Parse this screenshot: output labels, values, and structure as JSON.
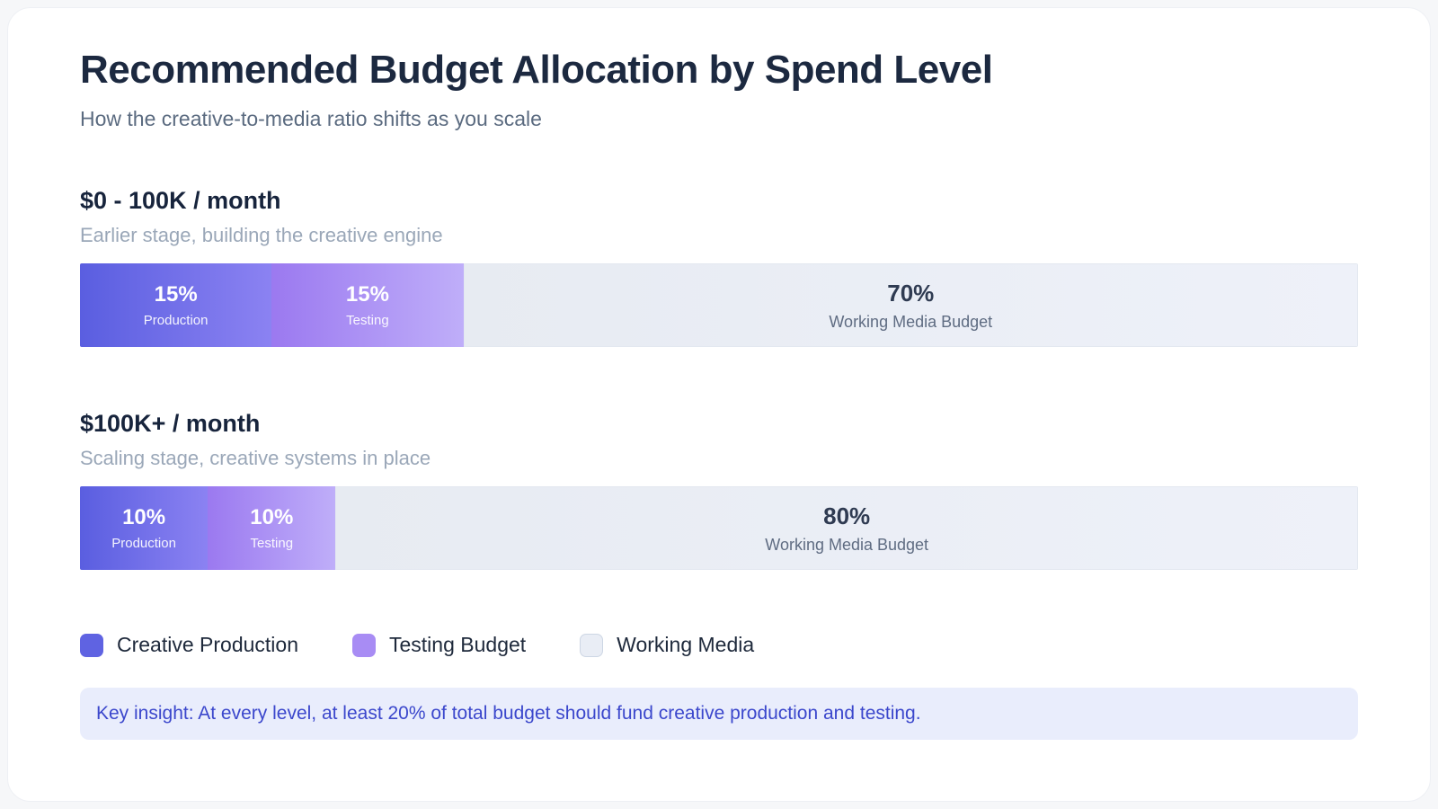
{
  "page": {
    "title": "Recommended Budget Allocation by Spend Level",
    "subtitle": "How the creative-to-media ratio shifts as you scale"
  },
  "chart_data": {
    "type": "bar",
    "stacked": true,
    "orientation": "horizontal",
    "unit": "%",
    "title": "Recommended Budget Allocation by Spend Level",
    "subtitle": "How the creative-to-media ratio shifts as you scale",
    "categories": [
      "$0 - 100K / month",
      "$100K+ / month"
    ],
    "series": [
      {
        "name": "Creative Production",
        "values": [
          15,
          10
        ]
      },
      {
        "name": "Testing Budget",
        "values": [
          15,
          10
        ]
      },
      {
        "name": "Working Media",
        "values": [
          70,
          80
        ]
      }
    ],
    "sections": [
      {
        "heading": "$0 - 100K / month",
        "description": "Earlier stage, building the creative engine",
        "segments": [
          {
            "label": "Production",
            "value": 15,
            "display": "15%"
          },
          {
            "label": "Testing",
            "value": 15,
            "display": "15%"
          },
          {
            "label": "Working Media Budget",
            "value": 70,
            "display": "70%"
          }
        ]
      },
      {
        "heading": "$100K+ / month",
        "description": "Scaling stage, creative systems in place",
        "segments": [
          {
            "label": "Production",
            "value": 10,
            "display": "10%"
          },
          {
            "label": "Testing",
            "value": 10,
            "display": "10%"
          },
          {
            "label": "Working Media Budget",
            "value": 80,
            "display": "80%"
          }
        ]
      }
    ]
  },
  "legend": [
    {
      "label": "Creative Production",
      "color": "#5f63e2"
    },
    {
      "label": "Testing Budget",
      "color": "#a88cf4"
    },
    {
      "label": "Working Media",
      "color": "#e9edf5"
    }
  ],
  "insight": {
    "text": "Key insight: At every level, at least 20% of total budget should fund creative production and testing."
  }
}
